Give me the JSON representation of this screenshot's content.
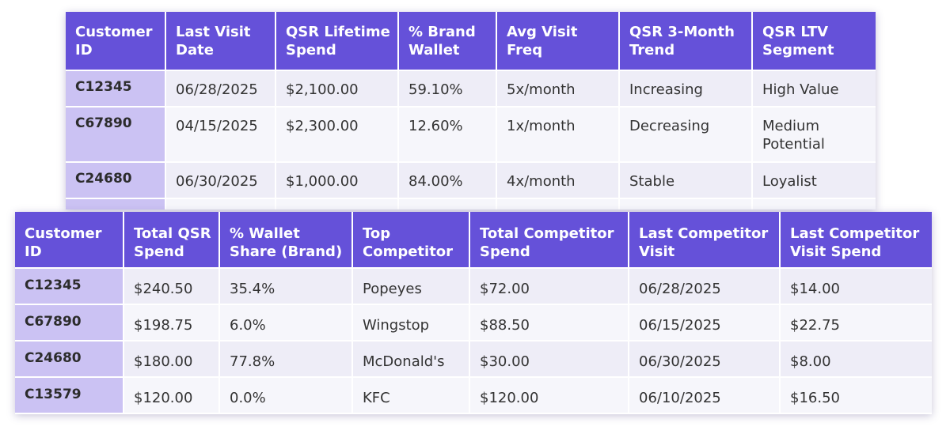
{
  "table1": {
    "headers": [
      [
        "Customer",
        "ID"
      ],
      [
        "Last Visit",
        "Date"
      ],
      [
        "QSR Lifetime",
        "Spend"
      ],
      [
        "% Brand",
        "Wallet"
      ],
      [
        "Avg Visit",
        "Freq"
      ],
      [
        "QSR 3-Month",
        "Trend"
      ],
      [
        "QSR LTV",
        "Segment"
      ]
    ],
    "rows": [
      [
        "C12345",
        "06/28/2025",
        "$2,100.00",
        "59.10%",
        "5x/month",
        "Increasing",
        "High Value",
        ""
      ],
      [
        "C67890",
        "04/15/2025",
        "$2,300.00",
        "12.60%",
        "1x/month",
        "Decreasing",
        "Medium",
        "Potential"
      ],
      [
        "C24680",
        "06/30/2025",
        "$1,000.00",
        "84.00%",
        "4x/month",
        "Stable",
        "Loyalist",
        ""
      ]
    ]
  },
  "table2": {
    "headers": [
      [
        "Customer",
        "ID"
      ],
      [
        "Total QSR",
        "Spend"
      ],
      [
        "% Wallet",
        "Share (Brand)"
      ],
      [
        "Top",
        "Competitor"
      ],
      [
        "Total Competitor",
        "Spend"
      ],
      [
        "Last Competitor",
        "Visit"
      ],
      [
        "Last Competitor",
        "Visit Spend"
      ]
    ],
    "rows": [
      [
        "C12345",
        "$240.50",
        "35.4%",
        "Popeyes",
        "$72.00",
        "06/28/2025",
        "$14.00"
      ],
      [
        "C67890",
        "$198.75",
        "6.0%",
        "Wingstop",
        "$88.50",
        "06/15/2025",
        "$22.75"
      ],
      [
        "C24680",
        "$180.00",
        "77.8%",
        "McDonald's",
        "$30.00",
        "06/30/2025",
        "$8.00"
      ],
      [
        "C13579",
        "$120.00",
        "0.0%",
        "KFC",
        "$120.00",
        "06/10/2025",
        "$16.50"
      ]
    ]
  }
}
